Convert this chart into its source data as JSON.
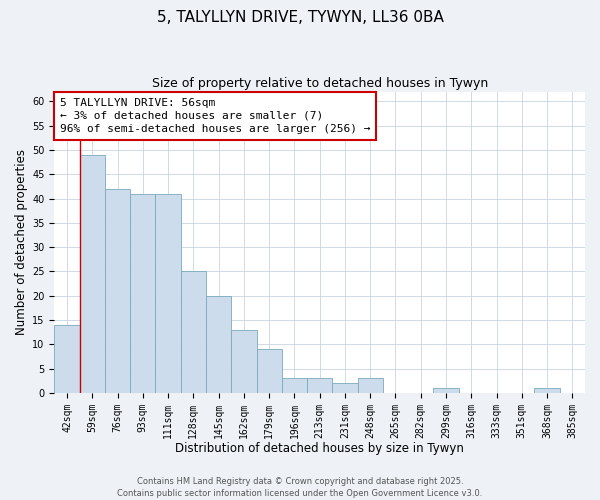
{
  "title": "5, TALYLLYN DRIVE, TYWYN, LL36 0BA",
  "subtitle": "Size of property relative to detached houses in Tywyn",
  "xlabel": "Distribution of detached houses by size in Tywyn",
  "ylabel": "Number of detached properties",
  "bin_labels": [
    "42sqm",
    "59sqm",
    "76sqm",
    "93sqm",
    "111sqm",
    "128sqm",
    "145sqm",
    "162sqm",
    "179sqm",
    "196sqm",
    "213sqm",
    "231sqm",
    "248sqm",
    "265sqm",
    "282sqm",
    "299sqm",
    "316sqm",
    "333sqm",
    "351sqm",
    "368sqm",
    "385sqm"
  ],
  "bar_heights": [
    14,
    49,
    42,
    41,
    41,
    25,
    20,
    13,
    9,
    3,
    3,
    2,
    3,
    0,
    0,
    1,
    0,
    0,
    0,
    1,
    0
  ],
  "bar_color": "#ccdcec",
  "bar_edge_color": "#7aaabb",
  "highlight_line_color": "#cc0000",
  "annotation_line1": "5 TALYLLYN DRIVE: 56sqm",
  "annotation_line2": "← 3% of detached houses are smaller (7)",
  "annotation_line3": "96% of semi-detached houses are larger (256) →",
  "annotation_box_color": "#ffffff",
  "annotation_box_edge_color": "#cc0000",
  "ylim": [
    0,
    62
  ],
  "yticks": [
    0,
    5,
    10,
    15,
    20,
    25,
    30,
    35,
    40,
    45,
    50,
    55,
    60
  ],
  "background_color": "#eef2f7",
  "plot_bg_color": "#ffffff",
  "grid_color": "#c8d4e0",
  "footer_text": "Contains HM Land Registry data © Crown copyright and database right 2025.\nContains public sector information licensed under the Open Government Licence v3.0.",
  "title_fontsize": 11,
  "subtitle_fontsize": 9,
  "xlabel_fontsize": 8.5,
  "ylabel_fontsize": 8.5,
  "tick_fontsize": 7,
  "annotation_fontsize": 8,
  "footer_fontsize": 6
}
